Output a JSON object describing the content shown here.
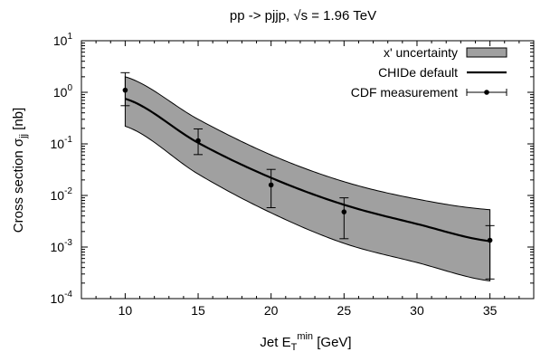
{
  "chart_data": {
    "type": "line",
    "title": "pp -> pjjp, √s = 1.96 TeV",
    "xlabel": {
      "main": "Jet E",
      "sub": "T",
      "sup": "min",
      "rest": " [GeV]"
    },
    "ylabel": {
      "main": "Cross section σ",
      "sub": "jj",
      "rest": " [nb]"
    },
    "xlim": [
      7,
      38
    ],
    "ylim": [
      0.0001,
      10
    ],
    "yscale": "log",
    "grid": false,
    "legend_position": "top-right",
    "x_ticks": [
      10,
      15,
      20,
      25,
      30,
      35
    ],
    "y_ticks": [
      {
        "value": 0.0001,
        "base": "10",
        "exp": "-4"
      },
      {
        "value": 0.001,
        "base": "10",
        "exp": "-3"
      },
      {
        "value": 0.01,
        "base": "10",
        "exp": "-2"
      },
      {
        "value": 0.1,
        "base": "10",
        "exp": "-1"
      },
      {
        "value": 1,
        "base": "10",
        "exp": "0"
      },
      {
        "value": 10,
        "base": "10",
        "exp": "1"
      }
    ],
    "band": {
      "name": "x' uncertainty",
      "color": "#a0a0a0",
      "x": [
        10,
        15,
        20,
        25,
        30,
        35
      ],
      "lower": [
        0.22,
        0.026,
        0.0046,
        0.00118,
        0.0005,
        0.00022
      ],
      "upper": [
        2.0,
        0.3,
        0.061,
        0.0185,
        0.0085,
        0.0053
      ]
    },
    "series": [
      {
        "name": "CHIDe default",
        "type": "line",
        "color": "#000000",
        "x": [
          10,
          15,
          20,
          25,
          30,
          35
        ],
        "y": [
          0.75,
          0.105,
          0.022,
          0.0066,
          0.0028,
          0.0013
        ]
      },
      {
        "name": "CDF measurement",
        "type": "points-errorbars",
        "color": "#000000",
        "x": [
          10,
          15,
          20,
          25,
          35
        ],
        "y": [
          1.1,
          0.115,
          0.016,
          0.0048,
          0.00135
        ],
        "ylow": [
          0.55,
          0.062,
          0.0058,
          0.00145,
          0.00024
        ],
        "yhigh": [
          2.4,
          0.195,
          0.032,
          0.009,
          0.0026
        ]
      }
    ]
  }
}
